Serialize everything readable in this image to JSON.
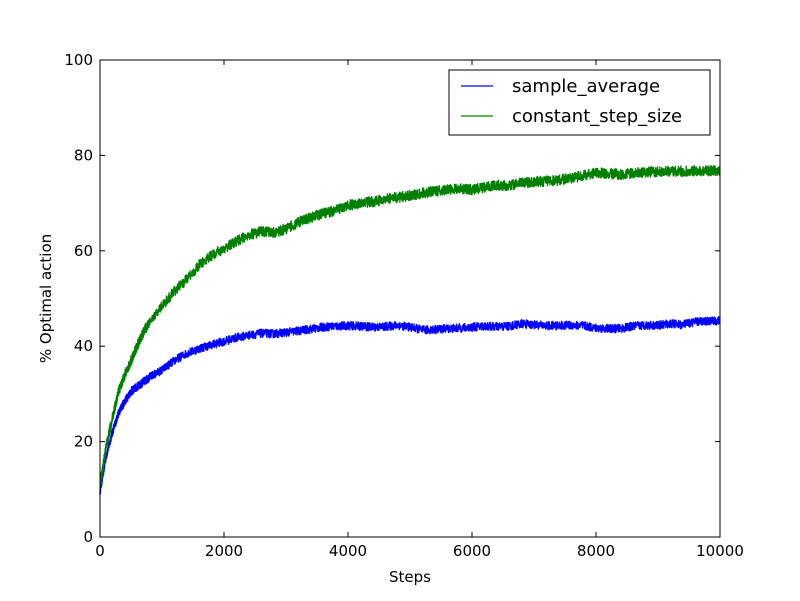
{
  "chart_data": {
    "type": "line",
    "title": "",
    "xlabel": "Steps",
    "ylabel": "% Optimal action",
    "xlim": [
      0,
      10000
    ],
    "ylim": [
      0,
      100
    ],
    "xticks": [
      0,
      2000,
      4000,
      6000,
      8000,
      10000
    ],
    "xtick_labels": [
      "0",
      "2000",
      "4000",
      "6000",
      "8000",
      "10000"
    ],
    "yticks": [
      0,
      20,
      40,
      60,
      80,
      100
    ],
    "ytick_labels": [
      "0",
      "20",
      "40",
      "60",
      "80",
      "100"
    ],
    "grid": false,
    "legend_position": "top-right",
    "x": [
      0,
      100,
      200,
      300,
      400,
      500,
      600,
      700,
      800,
      1000,
      1200,
      1400,
      1600,
      1800,
      2000,
      2200,
      2400,
      2600,
      2800,
      3000,
      3200,
      3400,
      3600,
      3800,
      4000,
      4200,
      4400,
      4600,
      4800,
      5000,
      5200,
      5400,
      5600,
      5800,
      6000,
      6200,
      6400,
      6600,
      6800,
      7000,
      7200,
      7400,
      7600,
      7800,
      8000,
      8200,
      8400,
      8600,
      8800,
      9000,
      9200,
      9400,
      9600,
      9800,
      10000
    ],
    "series": [
      {
        "name": "sample_average",
        "color": "#0000ff",
        "values": [
          9.5,
          17,
          22,
          26,
          28.5,
          30.5,
          31.5,
          32.5,
          33.5,
          35,
          37,
          38.5,
          39.5,
          40.3,
          41,
          41.8,
          42.3,
          42.7,
          42.6,
          42.9,
          43.2,
          43.6,
          44,
          44.2,
          44.3,
          44.2,
          44,
          44.1,
          44.4,
          44,
          43.4,
          43.5,
          43.7,
          43.8,
          44,
          44.2,
          44.1,
          44.2,
          44.7,
          44.5,
          44.3,
          44.3,
          44.4,
          44.3,
          43.8,
          43.7,
          43.7,
          44.2,
          44.4,
          44.4,
          44.7,
          44.5,
          45.1,
          45.3,
          45.3
        ]
      },
      {
        "name": "constant_step_size",
        "color": "#008000",
        "values": [
          11,
          19,
          25,
          30.5,
          34,
          37,
          40,
          43,
          45,
          48.5,
          51.5,
          54,
          57,
          59,
          60.5,
          62,
          63.3,
          64,
          63.8,
          64.6,
          66,
          67,
          67.8,
          68.5,
          69.5,
          70,
          70.3,
          70.8,
          71.2,
          71.5,
          72.1,
          72.5,
          72.8,
          73,
          72.8,
          73.3,
          73.7,
          73.7,
          74.2,
          74.5,
          74.6,
          74.8,
          75.3,
          75.8,
          76.4,
          76.2,
          76,
          76.3,
          76.5,
          76.6,
          76.6,
          76.7,
          76.8,
          76.8,
          76.8
        ]
      }
    ]
  }
}
